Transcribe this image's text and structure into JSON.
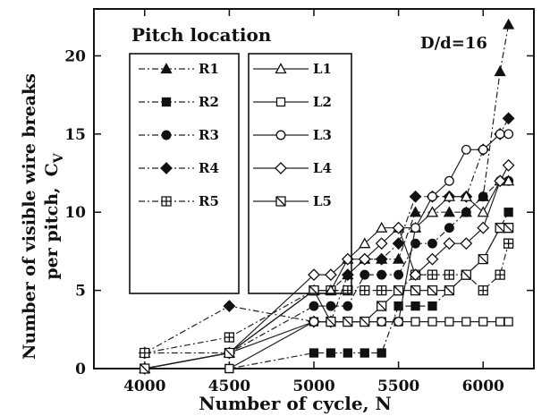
{
  "chart_data": {
    "type": "line",
    "title": "",
    "xlabel": "Number of cycle, N",
    "ylabel_line1": "Number of visible wire breaks",
    "ylabel_line2": "per pitch,",
    "ylabel_symbol": "C",
    "ylabel_subscript": "V",
    "xlim": [
      3700,
      6300
    ],
    "ylim": [
      0,
      23
    ],
    "xticks": [
      4000,
      4500,
      5000,
      5500,
      6000
    ],
    "yticks": [
      0,
      5,
      10,
      15,
      20
    ],
    "legend_title": "Pitch location",
    "annotation": "D/d=16",
    "grid": false,
    "series": [
      {
        "name": "R1",
        "marker": "triangle",
        "filled": true,
        "dash": "dashdot",
        "x": [
          4000,
          4500,
          5000,
          5100,
          5200,
          5300,
          5400,
          5500,
          5600,
          5700,
          5800,
          5900,
          6000,
          6100,
          6150
        ],
        "y": [
          1,
          1,
          5,
          5,
          6,
          7,
          7,
          7,
          10,
          10,
          10,
          10,
          11,
          19,
          22
        ]
      },
      {
        "name": "R2",
        "marker": "square",
        "filled": true,
        "dash": "dashdot",
        "x": [
          4000,
          4500,
          5000,
          5100,
          5200,
          5300,
          5400,
          5500,
          5600,
          5700,
          5800,
          5900,
          6000,
          6100,
          6150
        ],
        "y": [
          0,
          0,
          1,
          1,
          1,
          1,
          1,
          4,
          4,
          4,
          5,
          6,
          7,
          9,
          10
        ]
      },
      {
        "name": "R3",
        "marker": "circle",
        "filled": true,
        "dash": "dashdot",
        "x": [
          4000,
          4500,
          5000,
          5100,
          5200,
          5300,
          5400,
          5500,
          5600,
          5700,
          5800,
          5900,
          6000,
          6100,
          6150
        ],
        "y": [
          0,
          1,
          4,
          4,
          4,
          6,
          6,
          6,
          8,
          8,
          9,
          10,
          11,
          12,
          12
        ]
      },
      {
        "name": "R4",
        "marker": "diamond",
        "filled": true,
        "dash": "dashdot",
        "x": [
          4000,
          4500,
          5000,
          5100,
          5200,
          5300,
          5400,
          5500,
          5600,
          5700,
          5800,
          5900,
          6000,
          6100,
          6150
        ],
        "y": [
          1,
          4,
          3,
          3,
          6,
          7,
          7,
          8,
          11,
          11,
          11,
          11,
          14,
          15,
          16
        ]
      },
      {
        "name": "R5",
        "marker": "squareplus",
        "filled": false,
        "dash": "dashdot",
        "x": [
          4000,
          4500,
          5000,
          5100,
          5200,
          5300,
          5400,
          5500,
          5600,
          5700,
          5800,
          5900,
          6000,
          6100,
          6150
        ],
        "y": [
          1,
          2,
          5,
          5,
          5,
          5,
          5,
          5,
          6,
          6,
          6,
          6,
          5,
          6,
          8
        ]
      },
      {
        "name": "L1",
        "marker": "triangle",
        "filled": false,
        "dash": "solid",
        "x": [
          4000,
          4500,
          5000,
          5100,
          5200,
          5300,
          5400,
          5500,
          5600,
          5700,
          5800,
          5900,
          6000,
          6100,
          6150
        ],
        "y": [
          0,
          1,
          5,
          5,
          7,
          8,
          9,
          9,
          9,
          10,
          11,
          11,
          10,
          12,
          12
        ]
      },
      {
        "name": "L2",
        "marker": "square",
        "filled": false,
        "dash": "solid",
        "x": [
          4000,
          4500,
          5000,
          5100,
          5200,
          5300,
          5400,
          5500,
          5600,
          5700,
          5800,
          5900,
          6000,
          6100,
          6150
        ],
        "y": [
          0,
          0,
          3,
          3,
          3,
          3,
          3,
          3,
          3,
          3,
          3,
          3,
          3,
          3,
          3
        ]
      },
      {
        "name": "L3",
        "marker": "circle",
        "filled": false,
        "dash": "solid",
        "x": [
          4000,
          4500,
          5000,
          5100,
          5200,
          5300,
          5400,
          5500,
          5600,
          5700,
          5800,
          5900,
          6000,
          6100,
          6150
        ],
        "y": [
          0,
          1,
          3,
          3,
          3,
          3,
          3,
          3,
          9,
          11,
          12,
          14,
          14,
          15,
          15
        ]
      },
      {
        "name": "L4",
        "marker": "diamond",
        "filled": false,
        "dash": "solid",
        "x": [
          4000,
          4500,
          5000,
          5100,
          5200,
          5300,
          5400,
          5500,
          5600,
          5700,
          5800,
          5900,
          6000,
          6100,
          6150
        ],
        "y": [
          0,
          1,
          6,
          6,
          7,
          7,
          8,
          9,
          6,
          7,
          8,
          8,
          9,
          12,
          13
        ]
      },
      {
        "name": "L5",
        "marker": "squarecross",
        "filled": false,
        "dash": "solid",
        "x": [
          4000,
          4500,
          5000,
          5100,
          5200,
          5300,
          5400,
          5500,
          5600,
          5700,
          5800,
          5900,
          6000,
          6100,
          6150
        ],
        "y": [
          0,
          1,
          5,
          3,
          3,
          3,
          4,
          5,
          5,
          5,
          5,
          6,
          7,
          9,
          9
        ]
      }
    ]
  }
}
